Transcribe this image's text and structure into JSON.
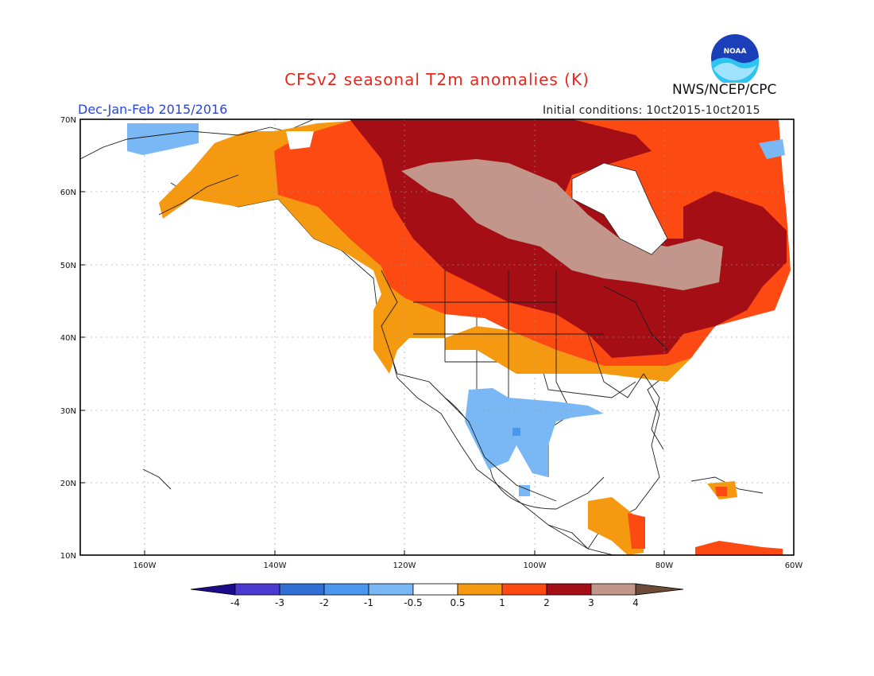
{
  "header": {
    "title": "CFSv2 seasonal T2m anomalies (K)",
    "period": "Dec-Jan-Feb 2015/2016",
    "initial_conditions": "Initial conditions: 10ct2015-10ct2015",
    "organization": "NWS/NCEP/CPC",
    "logo_text": "NOAA"
  },
  "axes": {
    "lat_labels": [
      "70N",
      "60N",
      "50N",
      "40N",
      "30N",
      "20N",
      "10N"
    ],
    "lon_labels": [
      "160W",
      "140W",
      "120W",
      "100W",
      "80W",
      "60W"
    ]
  },
  "colorbar": {
    "labels": [
      "-4",
      "-3",
      "-2",
      "-1",
      "-0.5",
      "0.5",
      "1",
      "2",
      "3",
      "4"
    ],
    "colors": [
      "#1e0a8c",
      "#4a3ad0",
      "#2f6fd6",
      "#4a97ee",
      "#79b8f4",
      "#ffffff",
      "#f59a10",
      "#fc4a12",
      "#a40e14",
      "#c2968a",
      "#6e4a38"
    ]
  },
  "colors": {
    "warm1": "#f59a10",
    "warm2": "#fc4a12",
    "warm3": "#a40e14",
    "warm4": "#c2968a",
    "cool1": "#79b8f4",
    "cool2": "#4a97ee"
  }
}
